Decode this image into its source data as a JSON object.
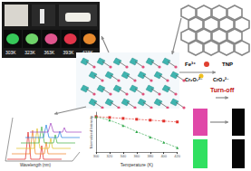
{
  "photos": {
    "labels": [
      "303K",
      "323K",
      "363K",
      "393K",
      "423K"
    ],
    "colors": [
      "#37c95a",
      "#6fd36a",
      "#e0558e",
      "#e2354a",
      "#e88a2e"
    ]
  },
  "sensing": {
    "analytes": [
      "Fe³⁺",
      "TNP",
      "Cr₂O₇²⁻",
      "CrO₄²⁻"
    ],
    "result": "Turn-off"
  },
  "spectra": {
    "x_label": "Wavelength (nm)"
  },
  "chart_data": {
    "type": "line",
    "x_label": "Temperature (K)",
    "y_label": "Normalized Intensity",
    "x": [
      300,
      320,
      340,
      360,
      380,
      400,
      420
    ],
    "series": [
      {
        "color": "#e0302a",
        "marker": "square",
        "values": [
          1.0,
          0.98,
          0.96,
          0.94,
          0.92,
          0.9,
          0.88
        ]
      },
      {
        "color": "#2fa84a",
        "marker": "triangle",
        "values": [
          1.0,
          0.92,
          0.8,
          0.66,
          0.54,
          0.42,
          0.3
        ]
      }
    ],
    "xlim": [
      300,
      420
    ],
    "xticks": [
      300,
      320,
      340,
      360,
      380,
      400,
      420
    ],
    "ylim": [
      0.2,
      1.1
    ],
    "tick_labels": "x",
    "grid": false
  }
}
